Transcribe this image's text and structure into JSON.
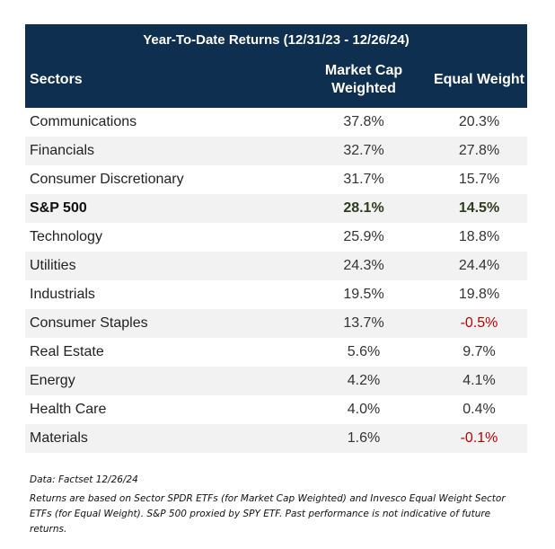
{
  "table": {
    "title": "Year-To-Date Returns (12/31/23 - 12/26/24)",
    "headers": [
      "Sectors",
      "Market Cap Weighted",
      "Equal Weight"
    ],
    "rows": [
      {
        "sector": "Communications",
        "market_cap": "37.8%",
        "equal_weight": "20.3%"
      },
      {
        "sector": "Financials",
        "market_cap": "32.7%",
        "equal_weight": "27.8%"
      },
      {
        "sector": "Consumer Discretionary",
        "market_cap": "31.7%",
        "equal_weight": "15.7%"
      },
      {
        "sector": "S&P 500",
        "market_cap": "28.1%",
        "equal_weight": "14.5%",
        "bold": true
      },
      {
        "sector": "Technology",
        "market_cap": "25.9%",
        "equal_weight": "18.8%"
      },
      {
        "sector": "Utilities",
        "market_cap": "24.3%",
        "equal_weight": "24.4%"
      },
      {
        "sector": "Industrials",
        "market_cap": "19.5%",
        "equal_weight": "19.8%"
      },
      {
        "sector": "Consumer Staples",
        "market_cap": "13.7%",
        "equal_weight": "-0.5%"
      },
      {
        "sector": "Real Estate",
        "market_cap": "5.6%",
        "equal_weight": "9.7%"
      },
      {
        "sector": "Energy",
        "market_cap": "4.2%",
        "equal_weight": "4.1%"
      },
      {
        "sector": "Health Care",
        "market_cap": "4.0%",
        "equal_weight": "0.4%"
      },
      {
        "sector": "Materials",
        "market_cap": "1.6%",
        "equal_weight": "-0.1%"
      }
    ]
  },
  "notes": {
    "source": "Data: Factset   12/26/24",
    "disclaimer": "Returns are based on Sector SPDR  ETFs (for Market Cap Weighted) and Invesco Equal Weight Sector ETFs (for Equal Weight). S&P 500 proxied by SPY ETF. Past performance is not indicative of future returns."
  },
  "colors": {
    "header_bg": "#0e2f4f",
    "negative": "#c00000",
    "stripe": "#f2f2f2"
  }
}
